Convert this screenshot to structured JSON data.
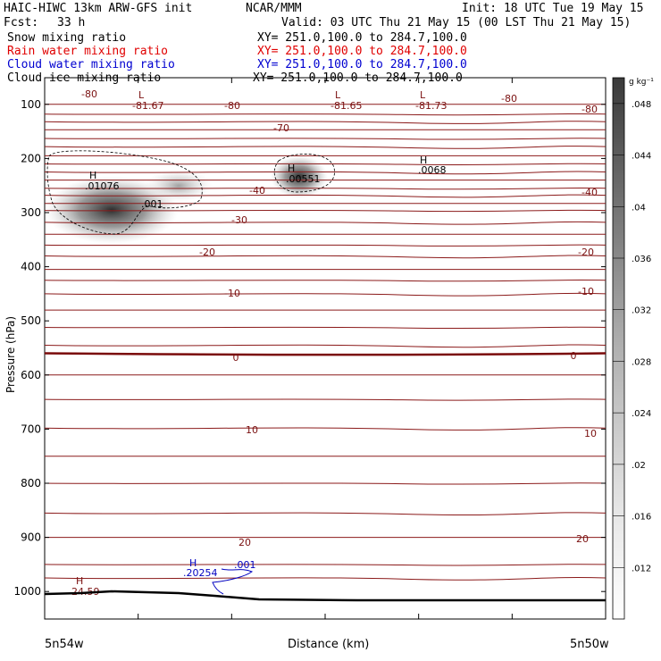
{
  "header": {
    "model": "HAIC-HIWC 13km ARW-GFS init",
    "org": "NCAR/MMM",
    "init": "Init: 18 UTC Tue 19 May 15",
    "fcst_label": "Fcst:",
    "fcst_value": "33 h",
    "valid": "Valid: 03 UTC Thu 21 May 15 (00 LST Thu 21 May 15)",
    "fields": [
      {
        "name": "Snow mixing ratio",
        "xy": "XY= 251.0,100.0 to 284.7,100.0",
        "color": "#000000"
      },
      {
        "name": "Rain water mixing ratio",
        "xy": "XY= 251.0,100.0 to 284.7,100.0",
        "color": "#e00000"
      },
      {
        "name": "Cloud water mixing ratio",
        "xy": "XY= 251.0,100.0 to 284.7,100.0",
        "color": "#0000d0"
      },
      {
        "name": "Cloud ice mixing ratio",
        "xy": "XY= 251.0,100.0 to 284.7,100.0",
        "color": "#000000"
      }
    ]
  },
  "chart_data": {
    "type": "cross-section",
    "ylabel": "Pressure (hPa)",
    "xlabel": "Distance (km)",
    "x_start_label": "5n54w",
    "x_end_label": "5n50w",
    "yticks": [
      100,
      200,
      300,
      400,
      500,
      600,
      700,
      800,
      900,
      1000
    ],
    "ylim": [
      50,
      1050
    ],
    "colorbar": {
      "unit": "g kg⁻¹",
      "ticks": [
        ".012",
        ".016",
        ".02",
        ".024",
        ".028",
        ".032",
        ".036",
        ".04",
        ".044",
        ".048"
      ]
    },
    "temperature_contour_labels": [
      "-80",
      "-70",
      "-40",
      "-30",
      "-20",
      "-10",
      "0",
      "10",
      "20"
    ],
    "extrema": [
      {
        "type": "L",
        "value": "-81.67",
        "color": "#7a1010"
      },
      {
        "type": "L",
        "value": "-81.65",
        "color": "#7a1010"
      },
      {
        "type": "L",
        "value": "-81.73",
        "color": "#7a1010"
      },
      {
        "type": "H",
        "value": ".01076",
        "color": "#000000"
      },
      {
        "type": "H",
        "value": ".00551",
        "color": "#000000"
      },
      {
        "type": "H",
        "value": ".0068",
        "color": "#000000"
      },
      {
        "type": "H",
        "value": "24.59",
        "color": "#7a1010"
      },
      {
        "type": "H",
        "value": ".20254",
        "color": "#0000c0"
      }
    ],
    "ice_contour_label": ".001",
    "cloud_water_contour_label": ".001"
  }
}
